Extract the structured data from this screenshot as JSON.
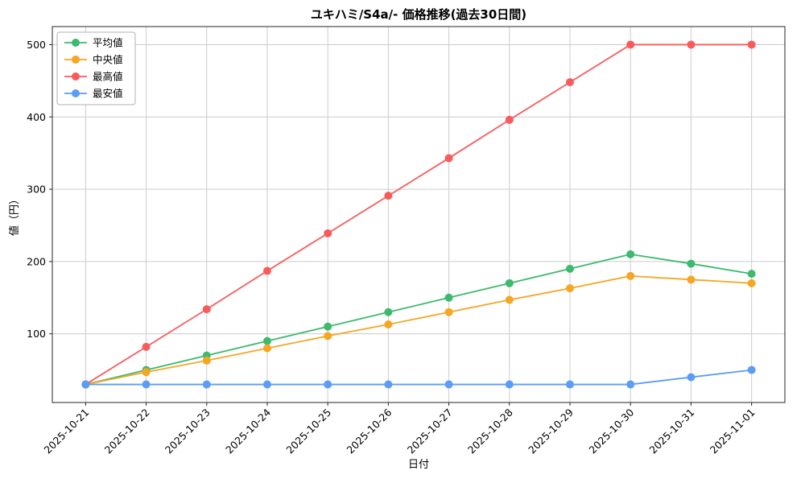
{
  "chart_data": {
    "type": "line",
    "title": "ユキハミ/S4a/- 価格推移(過去30日間)",
    "xlabel": "日付",
    "ylabel": "値（円）",
    "x": [
      "2025-10-21",
      "2025-10-22",
      "2025-10-23",
      "2025-10-24",
      "2025-10-25",
      "2025-10-26",
      "2025-10-27",
      "2025-10-28",
      "2025-10-29",
      "2025-10-30",
      "2025-10-31",
      "2025-11-01"
    ],
    "yticks": [
      100,
      200,
      300,
      400,
      500
    ],
    "ylim": [
      5,
      525
    ],
    "grid": true,
    "legend_position": "upper left",
    "series": [
      {
        "name": "平均値",
        "color": "#3cba6d",
        "values": [
          30,
          50,
          70,
          90,
          110,
          130,
          150,
          170,
          190,
          210,
          197,
          183
        ]
      },
      {
        "name": "中央値",
        "color": "#f5a623",
        "values": [
          30,
          47,
          63,
          80,
          97,
          113,
          130,
          147,
          163,
          180,
          175,
          170
        ]
      },
      {
        "name": "最高値",
        "color": "#f95b5b",
        "values": [
          30,
          82,
          134,
          187,
          239,
          291,
          343,
          396,
          448,
          500,
          500,
          500
        ]
      },
      {
        "name": "最安値",
        "color": "#5b9cf6",
        "values": [
          30,
          30,
          30,
          30,
          30,
          30,
          30,
          30,
          30,
          30,
          40,
          50
        ]
      }
    ],
    "frame_color": "#262626",
    "grid_color": "#cccccc",
    "legend_border_color": "#b0b0b0"
  }
}
